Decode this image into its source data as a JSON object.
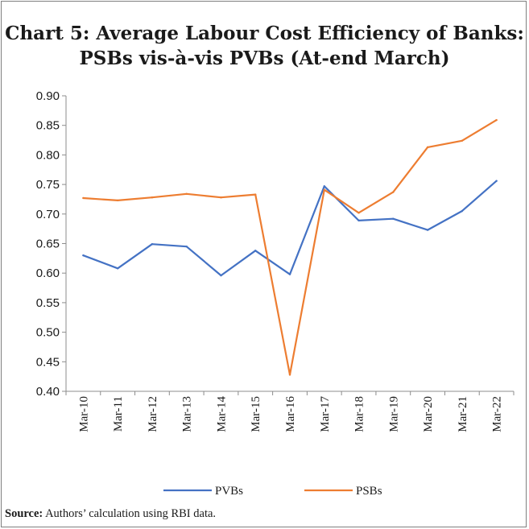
{
  "title_line1": "Chart 5: Average Labour Cost Efficiency of Banks:",
  "title_line2": "PSBs vis-à-vis PVBs (At-end March)",
  "source_label": "Source:",
  "source_text": " Authors’ calculation using RBI data.",
  "chart_data": {
    "type": "line",
    "title": "Chart 5: Average Labour Cost Efficiency of Banks: PSBs vis-à-vis PVBs (At-end March)",
    "xlabel": "",
    "ylabel": "",
    "categories": [
      "Mar-10",
      "Mar-11",
      "Mar-12",
      "Mar-13",
      "Mar-14",
      "Mar-15",
      "Mar-16",
      "Mar-17",
      "Mar-18",
      "Mar-19",
      "Mar-20",
      "Mar-21",
      "Mar-22"
    ],
    "ylim": [
      0.4,
      0.9
    ],
    "yticks": [
      "0.40",
      "0.45",
      "0.50",
      "0.55",
      "0.60",
      "0.65",
      "0.70",
      "0.75",
      "0.80",
      "0.85",
      "0.90"
    ],
    "grid": false,
    "legend_position": "bottom",
    "series": [
      {
        "name": "PVBs",
        "color": "#4472c4",
        "values": [
          0.63,
          0.608,
          0.649,
          0.645,
          0.596,
          0.638,
          0.598,
          0.747,
          0.689,
          0.692,
          0.673,
          0.705,
          0.756
        ]
      },
      {
        "name": "PSBs",
        "color": "#ed7d31",
        "values": [
          0.727,
          0.723,
          0.728,
          0.734,
          0.728,
          0.733,
          0.428,
          0.741,
          0.702,
          0.737,
          0.813,
          0.824,
          0.859
        ]
      }
    ]
  }
}
